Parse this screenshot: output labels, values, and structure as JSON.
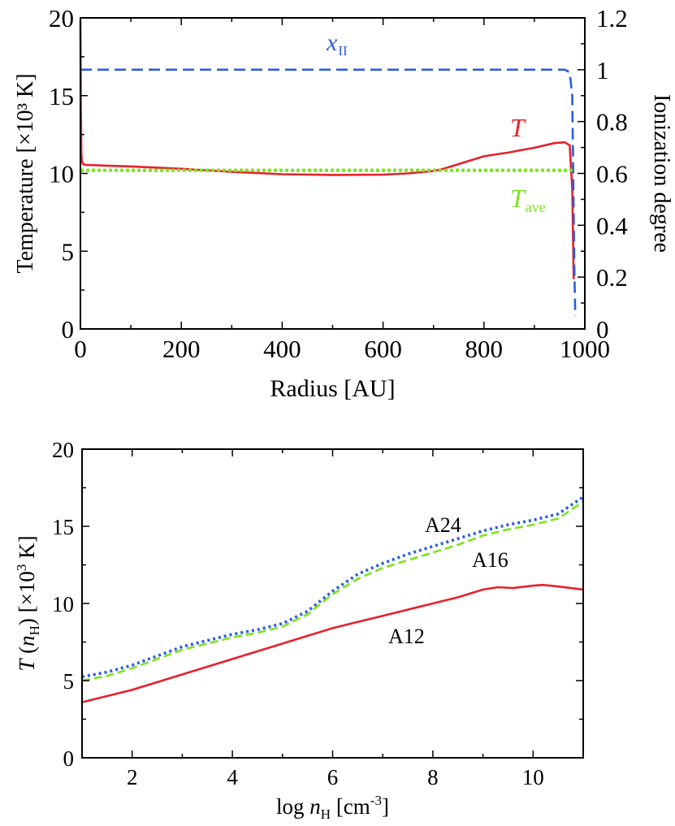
{
  "chart_data": [
    {
      "type": "line",
      "xlabel": "Radius [AU]",
      "ylabel": "Temperature [×10³ K]",
      "ylabel_right": "Ionization degree",
      "xlim": [
        0,
        1000
      ],
      "ylim": [
        0,
        20
      ],
      "ylim_right": [
        0,
        1.2
      ],
      "xticks": [
        "0",
        "200",
        "400",
        "600",
        "800",
        "1000"
      ],
      "yticks": [
        "0",
        "5",
        "10",
        "15",
        "20"
      ],
      "yticks_right": [
        "0",
        "0.2",
        "0.4",
        "0.6",
        "0.8",
        "1",
        "1.2"
      ],
      "series": [
        {
          "name": "T",
          "color": "#e8202a",
          "style": "solid",
          "axis": "left",
          "x": [
            0,
            1,
            2,
            3,
            5,
            10,
            50,
            100,
            200,
            300,
            400,
            500,
            600,
            650,
            700,
            720,
            750,
            800,
            850,
            900,
            940,
            960,
            970,
            975,
            978
          ],
          "y": [
            19.8,
            14.0,
            11.2,
            10.8,
            10.6,
            10.55,
            10.5,
            10.45,
            10.3,
            10.1,
            9.95,
            9.9,
            9.92,
            10.0,
            10.15,
            10.3,
            10.6,
            11.1,
            11.35,
            11.65,
            11.95,
            12.0,
            11.8,
            9.0,
            3.2
          ]
        },
        {
          "name": "x_II",
          "label_main": "x",
          "label_sub": "II",
          "color": "#2b5be0",
          "style": "dashed",
          "axis": "right",
          "x": [
            0,
            960,
            970,
            975,
            977,
            979,
            981
          ],
          "y": [
            1.0,
            1.0,
            0.99,
            0.9,
            0.6,
            0.25,
            0.05
          ]
        },
        {
          "name": "T_ave",
          "label_main": "T",
          "label_sub": "ave",
          "color": "#7be51e",
          "style": "dotted",
          "axis": "left",
          "x": [
            0,
            980
          ],
          "y": [
            10.2,
            10.2
          ]
        }
      ]
    },
    {
      "type": "line",
      "xlabel": "log n_H [cm^-3]",
      "xlabel_parts": [
        "log ",
        "n",
        "H",
        " [cm",
        "-3",
        "]"
      ],
      "ylabel": "T (n_H) [×10³ K]",
      "ylabel_parts": [
        "T",
        " (",
        "n",
        "H",
        ") [×10",
        "3",
        " K]"
      ],
      "xlim": [
        1,
        11
      ],
      "ylim": [
        0,
        20
      ],
      "xticks": [
        "2",
        "4",
        "6",
        "8",
        "10"
      ],
      "yticks": [
        "0",
        "5",
        "10",
        "15",
        "20"
      ],
      "series": [
        {
          "name": "A24",
          "color": "#2b5be0",
          "style": "dotted",
          "x": [
            1,
            1.5,
            2,
            2.5,
            3,
            3.5,
            4,
            4.5,
            5,
            5.5,
            6,
            6.5,
            7,
            7.5,
            8,
            8.5,
            9,
            9.5,
            10,
            10.5,
            11
          ],
          "y": [
            5.25,
            5.55,
            6.0,
            6.6,
            7.2,
            7.6,
            8.0,
            8.3,
            8.7,
            9.5,
            10.8,
            11.9,
            12.6,
            13.2,
            13.7,
            14.2,
            14.7,
            15.1,
            15.4,
            15.8,
            16.9
          ]
        },
        {
          "name": "A16",
          "color": "#7be51e",
          "style": "dashed",
          "x": [
            1,
            1.5,
            2,
            2.5,
            3,
            3.5,
            4,
            4.5,
            5,
            5.5,
            6,
            6.5,
            7,
            7.5,
            8,
            8.5,
            9,
            9.5,
            10,
            10.5,
            11
          ],
          "y": [
            5.0,
            5.3,
            5.8,
            6.4,
            7.0,
            7.4,
            7.8,
            8.1,
            8.5,
            9.3,
            10.6,
            11.6,
            12.3,
            12.8,
            13.3,
            13.8,
            14.4,
            14.8,
            15.1,
            15.5,
            16.6
          ]
        },
        {
          "name": "A12",
          "color": "#e8202a",
          "style": "solid",
          "x": [
            1,
            1.5,
            2,
            2.5,
            3,
            3.5,
            4,
            4.5,
            5,
            5.5,
            6,
            6.5,
            7,
            7.5,
            8,
            8.5,
            9,
            9.3,
            9.6,
            10,
            10.2,
            10.5,
            11
          ],
          "y": [
            3.6,
            4.0,
            4.4,
            4.9,
            5.4,
            5.9,
            6.4,
            6.9,
            7.4,
            7.9,
            8.4,
            8.8,
            9.2,
            9.6,
            10.0,
            10.4,
            10.9,
            11.05,
            11.0,
            11.15,
            11.2,
            11.1,
            10.9
          ]
        }
      ]
    }
  ]
}
